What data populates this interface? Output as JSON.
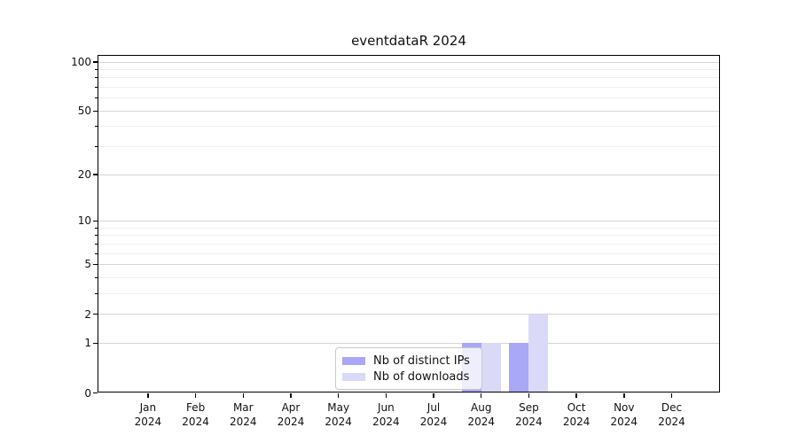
{
  "chart_data": {
    "type": "bar",
    "title": "eventdataR 2024",
    "categories": [
      "Jan",
      "Feb",
      "Mar",
      "Apr",
      "May",
      "Jun",
      "Jul",
      "Aug",
      "Sep",
      "Oct",
      "Nov",
      "Dec"
    ],
    "year_label": "2024",
    "series": [
      {
        "name": "Nb of distinct IPs",
        "color": "#a8a8f6",
        "values": [
          0,
          0,
          0,
          0,
          0,
          0,
          0,
          1,
          1,
          0,
          0,
          0
        ]
      },
      {
        "name": "Nb of downloads",
        "color": "#dadaf8",
        "values": [
          0,
          0,
          0,
          0,
          0,
          0,
          0,
          1,
          2,
          0,
          0,
          0
        ]
      }
    ],
    "y_axis": {
      "scale": "log1p",
      "major_ticks": [
        0,
        1,
        2,
        5,
        10,
        20,
        50,
        100
      ],
      "minor_gridlines": [
        3,
        4,
        6,
        7,
        8,
        9,
        30,
        40,
        60,
        70,
        80,
        90
      ],
      "top_value": 111
    },
    "grid": "on",
    "legend_position": "bottom-center",
    "colors": {
      "major_grid": "#d6d6d6",
      "minor_grid": "#efefef",
      "spine": "#000000",
      "text": "#111111"
    }
  }
}
